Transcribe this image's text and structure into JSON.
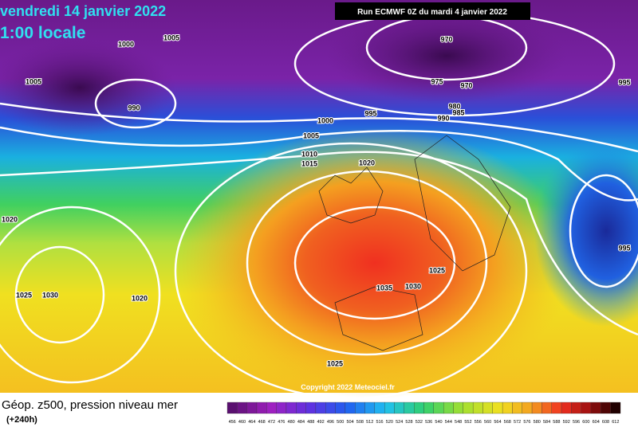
{
  "header": {
    "title": "vendredi 14 janvier 2022",
    "time": "1:00 locale",
    "run": "Run ECMWF 0Z du mardi 4 janvier 2022"
  },
  "isobar_labels": [
    "1000",
    "1005",
    "1005",
    "990",
    "970",
    "975",
    "970",
    "980",
    "985",
    "990",
    "995",
    "1000",
    "1005",
    "1010",
    "1015",
    "1020",
    "995",
    "995",
    "1020",
    "1025",
    "1030",
    "1020",
    "1035",
    "1030",
    "1025",
    "1025"
  ],
  "copyright": "Copyright 2022 Meteociel.fr",
  "footer": {
    "title": "Géop. z500, pression niveau mer",
    "lead": "(+240h)"
  },
  "scale": [
    "456",
    "460",
    "464",
    "468",
    "472",
    "476",
    "480",
    "484",
    "488",
    "492",
    "496",
    "500",
    "504",
    "508",
    "512",
    "516",
    "520",
    "524",
    "528",
    "532",
    "536",
    "540",
    "544",
    "548",
    "552",
    "556",
    "560",
    "564",
    "568",
    "572",
    "576",
    "580",
    "584",
    "588",
    "592",
    "596",
    "600",
    "604",
    "608",
    "612"
  ]
}
